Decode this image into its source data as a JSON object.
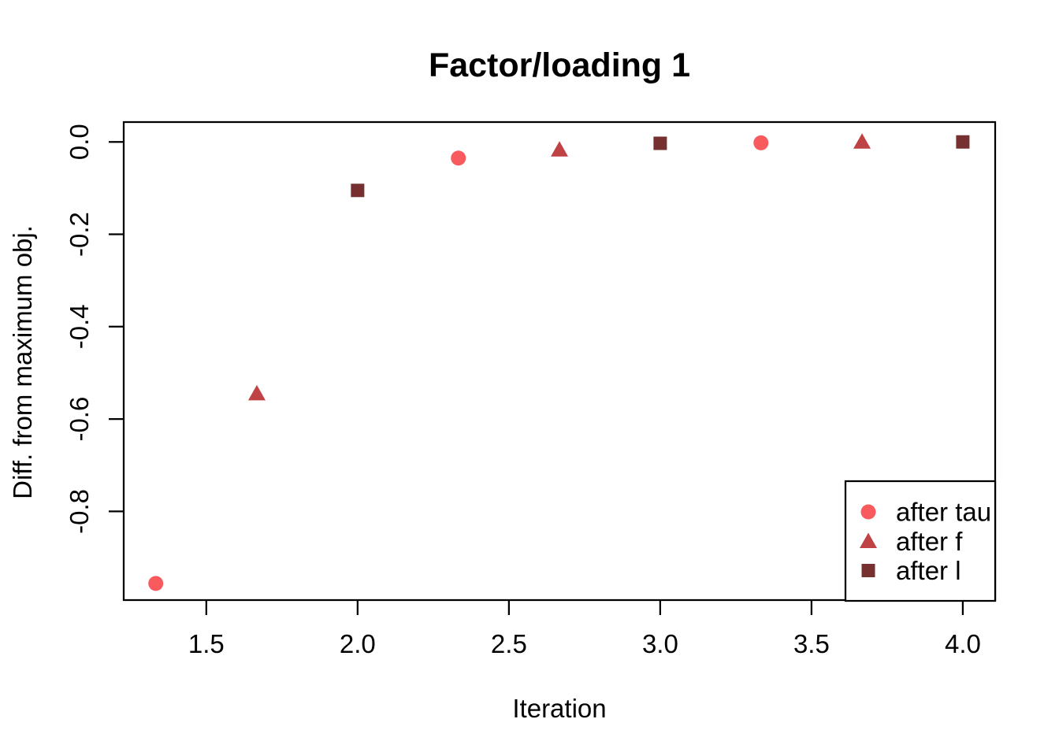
{
  "chart_data": {
    "type": "scatter",
    "title": "Factor/loading 1",
    "xlabel": "Iteration",
    "ylabel": "Diff. from maximum obj.",
    "xlim": [
      1.227,
      4.107
    ],
    "ylim": [
      -0.992,
      0.043
    ],
    "grid": false,
    "frame": "full-box",
    "axis_color": "#000000",
    "x_ticks": {
      "values": [
        1.5,
        2.0,
        2.5,
        3.0,
        3.5,
        4.0
      ],
      "labels": [
        "1.5",
        "2.0",
        "2.5",
        "3.0",
        "3.5",
        "4.0"
      ]
    },
    "y_ticks": {
      "values": [
        0.0,
        -0.2,
        -0.4,
        -0.6,
        -0.8
      ],
      "labels": [
        "0.0",
        "-0.2",
        "-0.4",
        "-0.6",
        "-0.8"
      ]
    },
    "series": [
      {
        "name": "after tau",
        "marker": "circle",
        "color": "#F85A5E",
        "points": [
          [
            1.333,
            -0.956
          ],
          [
            2.333,
            -0.035
          ],
          [
            3.333,
            -0.002
          ]
        ]
      },
      {
        "name": "after f",
        "marker": "triangle",
        "color": "#BF4245",
        "points": [
          [
            1.667,
            -0.545
          ],
          [
            2.667,
            -0.017
          ],
          [
            3.667,
            0.0
          ]
        ]
      },
      {
        "name": "after l",
        "marker": "square",
        "color": "#76302F",
        "points": [
          [
            2.0,
            -0.105
          ],
          [
            3.0,
            -0.003
          ],
          [
            4.0,
            0.0
          ]
        ]
      }
    ],
    "legend": {
      "position": "bottomright",
      "labels": [
        "after tau",
        "after f",
        "after l"
      ]
    }
  }
}
